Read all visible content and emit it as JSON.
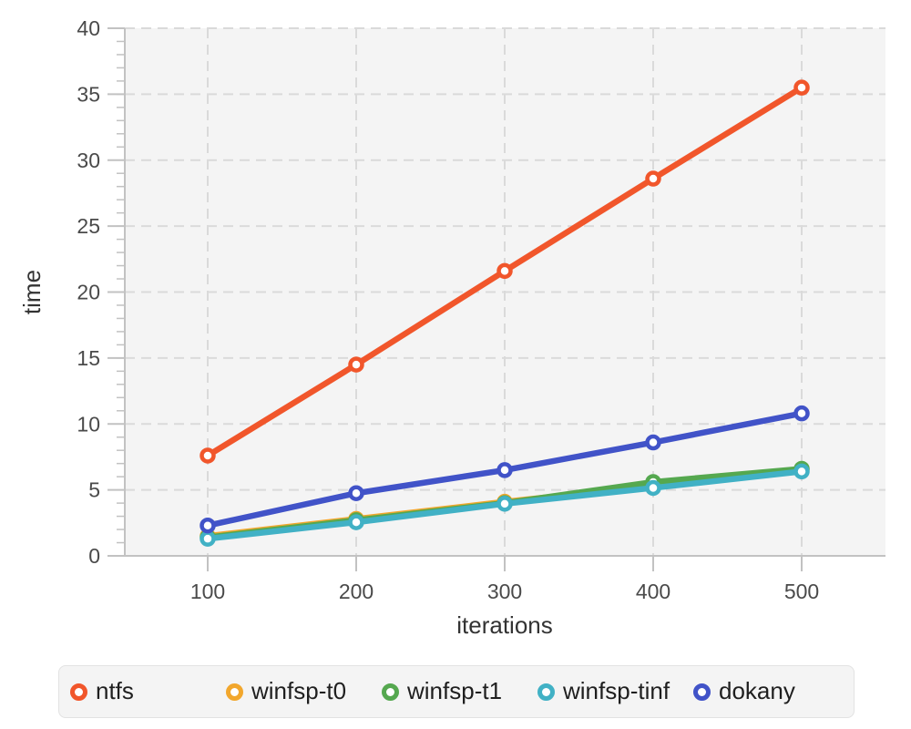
{
  "chart_data": {
    "type": "line",
    "x": [
      100,
      200,
      300,
      400,
      500
    ],
    "series": [
      {
        "name": "ntfs",
        "color": "#f1562b",
        "values": [
          7.6,
          14.5,
          21.6,
          28.6,
          35.5
        ]
      },
      {
        "name": "winfsp-t0",
        "color": "#f2a72d",
        "values": [
          1.5,
          2.8,
          4.1,
          5.3,
          6.55
        ]
      },
      {
        "name": "winfsp-t1",
        "color": "#55a84f",
        "values": [
          1.4,
          2.7,
          4.0,
          5.6,
          6.6
        ]
      },
      {
        "name": "winfsp-tinf",
        "color": "#41b1c5",
        "values": [
          1.3,
          2.55,
          3.95,
          5.15,
          6.4
        ]
      },
      {
        "name": "dokany",
        "color": "#4153c8",
        "values": [
          2.3,
          4.75,
          6.5,
          8.6,
          10.8
        ]
      }
    ],
    "xlabel": "iterations",
    "ylabel": "time",
    "xlim": [
      100,
      500
    ],
    "ylim": [
      0,
      40
    ],
    "x_ticks": [
      100,
      200,
      300,
      400,
      500
    ],
    "y_ticks": [
      0,
      5,
      10,
      15,
      20,
      25,
      30,
      35,
      40
    ],
    "y_minor_step": 1,
    "grid": "dashed",
    "legend_position": "bottom",
    "colors": {
      "plot_bg": "#f4f4f4",
      "grid": "#dadada",
      "axis": "#c2c2c2",
      "tick": "#c2c2c2",
      "tick_label": "#4a4a4a",
      "axis_label": "#333333"
    }
  }
}
